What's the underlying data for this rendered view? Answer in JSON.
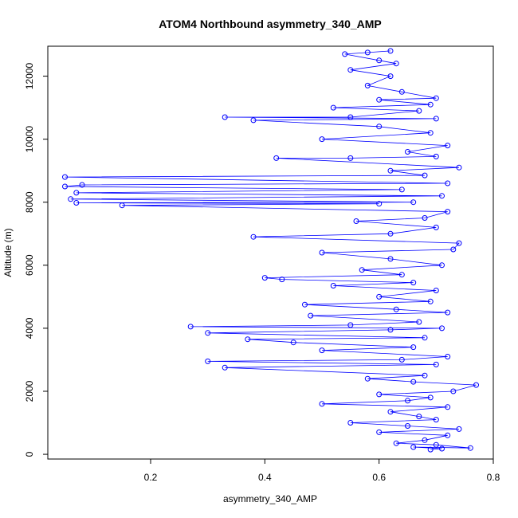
{
  "chart_data": {
    "type": "scatter",
    "title": "ATOM4 Northbound asymmetry_340_AMP",
    "xlabel": "asymmetry_340_AMP",
    "ylabel": "Altitude (m)",
    "xlim": [
      0.02,
      0.8
    ],
    "ylim": [
      -150,
      12950
    ],
    "x_ticks": [
      0.2,
      0.4,
      0.6,
      0.8
    ],
    "y_ticks": [
      0,
      2000,
      4000,
      6000,
      8000,
      10000,
      12000
    ],
    "grid": false,
    "legend": "none",
    "series": [
      {
        "marker": "open-circle",
        "connected": true,
        "color": "#0000ff",
        "points": [
          [
            0.69,
            150
          ],
          [
            0.71,
            180
          ],
          [
            0.66,
            230
          ],
          [
            0.76,
            200
          ],
          [
            0.7,
            300
          ],
          [
            0.63,
            350
          ],
          [
            0.68,
            450
          ],
          [
            0.72,
            600
          ],
          [
            0.6,
            700
          ],
          [
            0.74,
            800
          ],
          [
            0.65,
            900
          ],
          [
            0.55,
            1000
          ],
          [
            0.7,
            1100
          ],
          [
            0.67,
            1200
          ],
          [
            0.62,
            1350
          ],
          [
            0.72,
            1500
          ],
          [
            0.5,
            1600
          ],
          [
            0.65,
            1700
          ],
          [
            0.69,
            1800
          ],
          [
            0.6,
            1900
          ],
          [
            0.73,
            2000
          ],
          [
            0.77,
            2200
          ],
          [
            0.66,
            2300
          ],
          [
            0.58,
            2400
          ],
          [
            0.68,
            2500
          ],
          [
            0.33,
            2750
          ],
          [
            0.7,
            2850
          ],
          [
            0.3,
            2950
          ],
          [
            0.64,
            3000
          ],
          [
            0.72,
            3100
          ],
          [
            0.5,
            3300
          ],
          [
            0.66,
            3400
          ],
          [
            0.45,
            3550
          ],
          [
            0.37,
            3650
          ],
          [
            0.68,
            3700
          ],
          [
            0.3,
            3850
          ],
          [
            0.62,
            3950
          ],
          [
            0.71,
            4000
          ],
          [
            0.27,
            4050
          ],
          [
            0.55,
            4100
          ],
          [
            0.67,
            4200
          ],
          [
            0.48,
            4400
          ],
          [
            0.72,
            4500
          ],
          [
            0.63,
            4600
          ],
          [
            0.47,
            4750
          ],
          [
            0.69,
            4850
          ],
          [
            0.6,
            5000
          ],
          [
            0.7,
            5200
          ],
          [
            0.52,
            5350
          ],
          [
            0.66,
            5450
          ],
          [
            0.43,
            5550
          ],
          [
            0.4,
            5600
          ],
          [
            0.64,
            5700
          ],
          [
            0.57,
            5850
          ],
          [
            0.71,
            6000
          ],
          [
            0.62,
            6200
          ],
          [
            0.5,
            6400
          ],
          [
            0.73,
            6500
          ],
          [
            0.74,
            6700
          ],
          [
            0.38,
            6900
          ],
          [
            0.62,
            7000
          ],
          [
            0.7,
            7200
          ],
          [
            0.56,
            7400
          ],
          [
            0.68,
            7500
          ],
          [
            0.72,
            7700
          ],
          [
            0.15,
            7900
          ],
          [
            0.6,
            7950
          ],
          [
            0.07,
            7980
          ],
          [
            0.66,
            8000
          ],
          [
            0.06,
            8100
          ],
          [
            0.71,
            8200
          ],
          [
            0.07,
            8300
          ],
          [
            0.64,
            8400
          ],
          [
            0.05,
            8500
          ],
          [
            0.08,
            8550
          ],
          [
            0.72,
            8600
          ],
          [
            0.05,
            8800
          ],
          [
            0.68,
            8850
          ],
          [
            0.62,
            9000
          ],
          [
            0.74,
            9100
          ],
          [
            0.42,
            9400
          ],
          [
            0.55,
            9400
          ],
          [
            0.7,
            9450
          ],
          [
            0.65,
            9600
          ],
          [
            0.72,
            9800
          ],
          [
            0.5,
            10000
          ],
          [
            0.69,
            10200
          ],
          [
            0.6,
            10400
          ],
          [
            0.38,
            10600
          ],
          [
            0.7,
            10650
          ],
          [
            0.33,
            10700
          ],
          [
            0.55,
            10700
          ],
          [
            0.67,
            10900
          ],
          [
            0.52,
            11000
          ],
          [
            0.69,
            11100
          ],
          [
            0.6,
            11250
          ],
          [
            0.7,
            11300
          ],
          [
            0.64,
            11500
          ],
          [
            0.58,
            11700
          ],
          [
            0.62,
            12000
          ],
          [
            0.55,
            12200
          ],
          [
            0.63,
            12400
          ],
          [
            0.6,
            12500
          ],
          [
            0.54,
            12700
          ],
          [
            0.62,
            12800
          ],
          [
            0.58,
            12750
          ]
        ]
      }
    ]
  }
}
